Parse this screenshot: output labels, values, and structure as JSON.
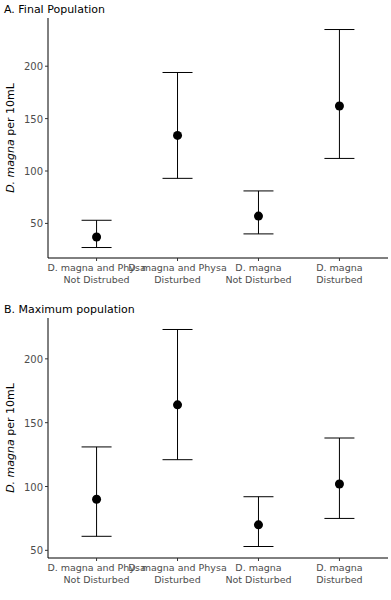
{
  "chart_data": [
    {
      "type": "scatter",
      "title": "A. Final Population",
      "ylabel": "D. magna per 10mL",
      "categories": [
        "D. magna and Physa\nNot Distrubed",
        "D. magna and Physa\nDisturbed",
        "D. magna\nNot Disturbed",
        "D. magna\nDisturbed"
      ],
      "values": [
        37,
        134,
        57,
        162
      ],
      "error_low": [
        27,
        93,
        40,
        112
      ],
      "error_high": [
        53,
        194,
        81,
        235
      ],
      "ylim": [
        17,
        246
      ],
      "yticks": [
        50,
        100,
        150,
        200
      ],
      "color": "#000000",
      "marker": "circle",
      "grid": false
    },
    {
      "type": "scatter",
      "title": "B. Maximum population",
      "ylabel": "D. magna per 10mL",
      "categories": [
        "D. magna and Physa\nNot Disturbed",
        "D. magna and Physa\nDisturbed",
        "D. magna\nNot Disturbed",
        "D. magna\nDisturbed"
      ],
      "values": [
        90,
        164,
        70,
        102
      ],
      "error_low": [
        61,
        121,
        53,
        75
      ],
      "error_high": [
        131,
        223,
        92,
        138
      ],
      "ylim": [
        44,
        232
      ],
      "yticks": [
        50,
        100,
        150,
        200
      ],
      "color": "#000000",
      "marker": "circle",
      "grid": false
    }
  ]
}
